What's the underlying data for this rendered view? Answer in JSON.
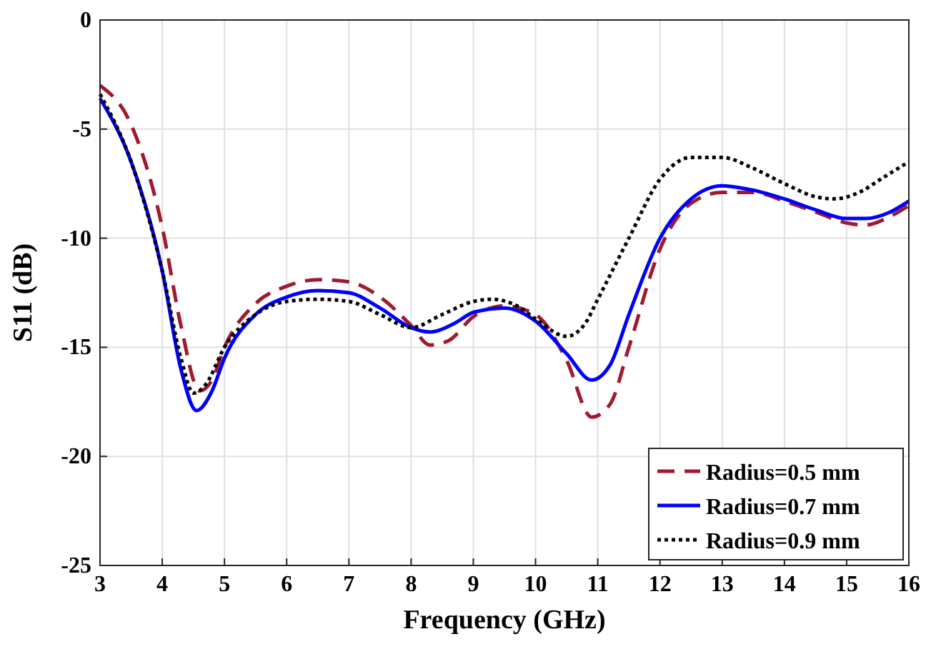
{
  "chart_data": {
    "type": "line",
    "xlabel": "Frequency (GHz)",
    "ylabel": "S11 (dB)",
    "xlim": [
      3,
      16
    ],
    "ylim": [
      -25,
      0
    ],
    "xticks": [
      3,
      4,
      5,
      6,
      7,
      8,
      9,
      10,
      11,
      12,
      13,
      14,
      15,
      16
    ],
    "yticks": [
      -25,
      -20,
      -15,
      -10,
      -5,
      0
    ],
    "grid": true,
    "legend": "bottom right",
    "series": [
      {
        "name": "Radius=0.5 mm",
        "color": "#a0192f",
        "line_style": "dashed",
        "x": [
          3,
          3.5,
          4,
          4.3,
          4.6,
          4.8,
          5,
          5.5,
          6,
          6.5,
          7,
          7.5,
          8,
          8.3,
          8.6,
          9,
          9.5,
          10,
          10.5,
          10.9,
          11.2,
          11.5,
          12,
          12.5,
          13,
          13.5,
          14,
          14.5,
          15,
          15.3,
          15.7,
          16
        ],
        "values": [
          -3,
          -4.8,
          -9.5,
          -14,
          -17,
          -16.5,
          -15,
          -13,
          -12.2,
          -11.9,
          -12,
          -12.7,
          -14,
          -14.9,
          -14.7,
          -13.6,
          -13.1,
          -13.5,
          -15.6,
          -18.2,
          -17.6,
          -15,
          -10.5,
          -8.4,
          -7.9,
          -7.9,
          -8.3,
          -8.8,
          -9.3,
          -9.4,
          -9,
          -8.5
        ]
      },
      {
        "name": "Radius=0.7 mm",
        "color": "#0000ff",
        "line_style": "solid",
        "x": [
          3,
          3.5,
          4,
          4.3,
          4.55,
          4.8,
          5,
          5.5,
          6,
          6.5,
          7,
          7.5,
          8,
          8.3,
          8.7,
          9,
          9.5,
          10,
          10.5,
          10.9,
          11.2,
          11.5,
          12,
          12.5,
          13,
          13.5,
          14,
          14.5,
          15,
          15.3,
          15.7,
          16
        ],
        "values": [
          -3.6,
          -6.5,
          -11.5,
          -16,
          -17.9,
          -17,
          -15.5,
          -13.5,
          -12.7,
          -12.4,
          -12.5,
          -13.2,
          -14.1,
          -14.3,
          -13.9,
          -13.4,
          -13.2,
          -13.8,
          -15.3,
          -16.5,
          -15.8,
          -13.5,
          -10,
          -8.2,
          -7.6,
          -7.8,
          -8.2,
          -8.7,
          -9.1,
          -9.1,
          -8.8,
          -8.3
        ]
      },
      {
        "name": "Radius=0.9 mm",
        "color": "#000000",
        "line_style": "dotted",
        "x": [
          3,
          3.5,
          4,
          4.3,
          4.5,
          4.7,
          5,
          5.5,
          6,
          6.5,
          7,
          7.5,
          8,
          8.5,
          9,
          9.3,
          9.7,
          10,
          10.5,
          10.8,
          11,
          11.5,
          12,
          12.5,
          13,
          13.5,
          14,
          14.5,
          14.8,
          15.2,
          15.6,
          16
        ],
        "values": [
          -3.4,
          -6.5,
          -11.5,
          -15.5,
          -17.1,
          -16.7,
          -15,
          -13.5,
          -12.9,
          -12.8,
          -12.9,
          -13.5,
          -14.1,
          -13.5,
          -12.9,
          -12.8,
          -13.1,
          -13.7,
          -14.5,
          -13.9,
          -12.8,
          -10,
          -7.3,
          -6.3,
          -6.3,
          -6.8,
          -7.5,
          -8.1,
          -8.2,
          -7.9,
          -7.2,
          -6.5
        ]
      }
    ]
  }
}
